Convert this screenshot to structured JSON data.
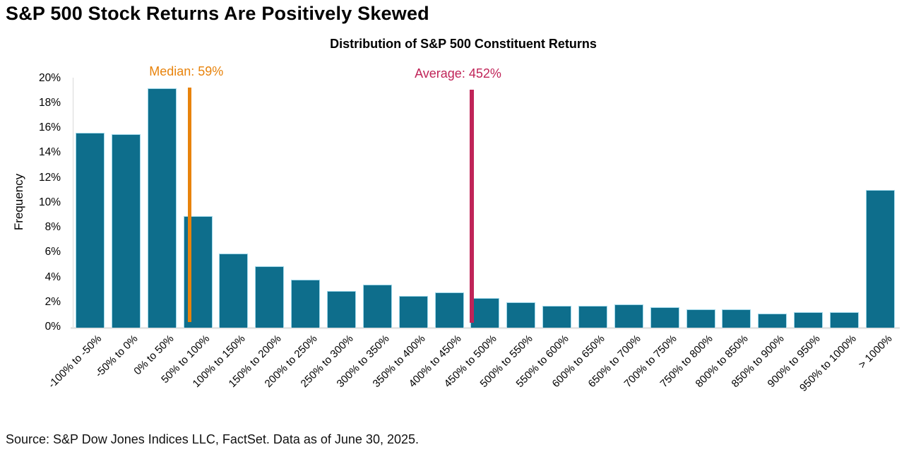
{
  "title": "S&P 500 Stock Returns Are Positively Skewed",
  "source": "Source: S&P Dow Jones Indices LLC, FactSet. Data as of June 30, 2025.",
  "chart_data": {
    "type": "bar",
    "title": "Distribution of S&P 500 Constituent Returns",
    "xlabel": "",
    "ylabel": "Frequency",
    "ylim": [
      0,
      20
    ],
    "y_tick_step": 2,
    "y_tick_suffix": "%",
    "grid": false,
    "legend": "none",
    "bar_color": "#0e6e8c",
    "bar_edge_color": "#a0d8ea",
    "categories": [
      "-100% to -50%",
      "-50% to 0%",
      "0% to 50%",
      "50% to 100%",
      "100% to 150%",
      "150% to 200%",
      "200% to 250%",
      "250% to 300%",
      "300% to 350%",
      "350% to 400%",
      "400% to 450%",
      "450% to 500%",
      "500% to 550%",
      "550% to 600%",
      "600% to 650%",
      "650% to 700%",
      "700% to 750%",
      "750% to 800%",
      "800% to 850%",
      "850% to 900%",
      "900% to 950%",
      "950% to 1000%",
      "> 1000%"
    ],
    "values": [
      15.6,
      15.5,
      19.2,
      8.9,
      5.9,
      4.9,
      3.8,
      2.9,
      3.4,
      2.5,
      2.8,
      2.3,
      2.0,
      1.7,
      1.7,
      1.8,
      1.6,
      1.4,
      1.4,
      1.1,
      1.2,
      1.2,
      11.0
    ],
    "x_scale": {
      "bin_start": -100,
      "bin_width": 50
    },
    "annotations": [
      {
        "name": "median",
        "label": "Median: 59%",
        "value": 59,
        "color": "#e8830c"
      },
      {
        "name": "average",
        "label": "Average: 452%",
        "value": 452,
        "color": "#c02458"
      }
    ]
  }
}
